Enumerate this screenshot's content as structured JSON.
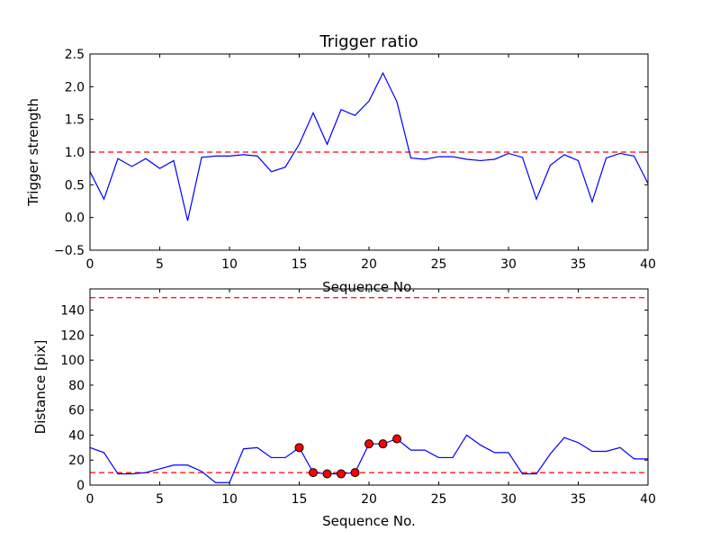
{
  "chart_data": [
    {
      "type": "line",
      "title": "Trigger ratio",
      "xlabel": "Sequence No.",
      "ylabel": "Trigger strength",
      "xlim": [
        0,
        40
      ],
      "ylim": [
        -0.5,
        2.5
      ],
      "xticks": [
        0,
        5,
        10,
        15,
        20,
        25,
        30,
        35,
        40
      ],
      "yticks": [
        -0.5,
        0.0,
        0.5,
        1.0,
        1.5,
        2.0,
        2.5
      ],
      "ytick_labels": [
        "−0.5",
        "0.0",
        "0.5",
        "1.0",
        "1.5",
        "2.0",
        "2.5"
      ],
      "grid": false,
      "series": [
        {
          "color": "#0000ff",
          "x": [
            0,
            1,
            2,
            3,
            4,
            5,
            6,
            7,
            8,
            9,
            10,
            11,
            12,
            13,
            14,
            15,
            16,
            17,
            18,
            19,
            20,
            21,
            22,
            23,
            24,
            25,
            26,
            27,
            28,
            29,
            30,
            31,
            32,
            33,
            34,
            35,
            36,
            37,
            38,
            39,
            40
          ],
          "y": [
            0.7,
            0.28,
            0.9,
            0.78,
            0.9,
            0.75,
            0.87,
            -0.05,
            0.92,
            0.94,
            0.94,
            0.96,
            0.94,
            0.7,
            0.77,
            1.12,
            1.6,
            1.12,
            1.65,
            1.56,
            1.78,
            2.21,
            1.77,
            0.91,
            0.89,
            0.93,
            0.93,
            0.89,
            0.87,
            0.89,
            0.98,
            0.92,
            0.28,
            0.8,
            0.96,
            0.87,
            0.24,
            0.91,
            0.98,
            0.94,
            0.52
          ]
        }
      ],
      "hlines": [
        {
          "y": 1.0,
          "color": "#ff0000",
          "style": "dashed"
        }
      ]
    },
    {
      "type": "line",
      "title": "",
      "xlabel": "Sequence No.",
      "ylabel": "Distance [pix]",
      "xlim": [
        0,
        40
      ],
      "ylim": [
        0,
        157
      ],
      "xticks": [
        0,
        5,
        10,
        15,
        20,
        25,
        30,
        35,
        40
      ],
      "yticks": [
        0,
        20,
        40,
        60,
        80,
        100,
        120,
        140
      ],
      "grid": false,
      "series": [
        {
          "color": "#0000ff",
          "x": [
            0,
            1,
            2,
            3,
            4,
            5,
            6,
            7,
            8,
            9,
            10,
            11,
            12,
            13,
            14,
            15,
            16,
            17,
            18,
            19,
            20,
            21,
            22,
            23,
            24,
            25,
            26,
            27,
            28,
            29,
            30,
            31,
            32,
            33,
            34,
            35,
            36,
            37,
            38,
            39,
            40
          ],
          "y": [
            30,
            26,
            9,
            9,
            10,
            13,
            16,
            16,
            11,
            2,
            2,
            29,
            30,
            22,
            22,
            30,
            10,
            9,
            9,
            10,
            33,
            33,
            37,
            28,
            28,
            22,
            22,
            40,
            32,
            26,
            26,
            9,
            9,
            25,
            38,
            34,
            27,
            27,
            30,
            21,
            21
          ]
        }
      ],
      "markers": {
        "color": "#ff0000",
        "edgecolor": "#000000",
        "x": [
          15,
          16,
          17,
          18,
          19,
          20,
          21,
          22
        ],
        "y": [
          30,
          10,
          9,
          9,
          10,
          33,
          33,
          37
        ]
      },
      "hlines": [
        {
          "y": 150,
          "color": "#ff0000",
          "style": "dashed"
        },
        {
          "y": 10,
          "color": "#ff0000",
          "style": "dashed"
        }
      ]
    }
  ]
}
